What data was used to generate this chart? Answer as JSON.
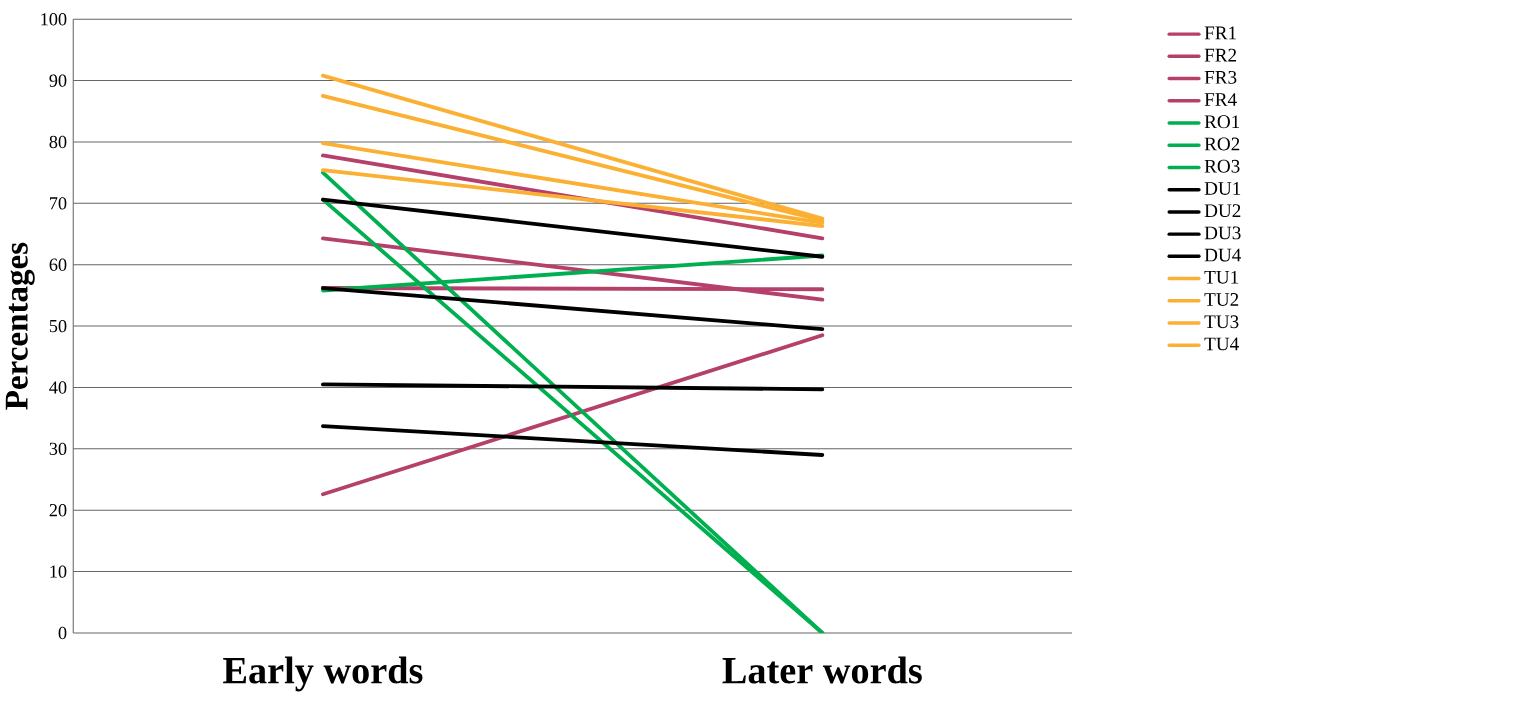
{
  "chart_data": {
    "type": "line",
    "categories": [
      "Early words",
      "Later words"
    ],
    "ylabel": "Percentages",
    "ylim": [
      0,
      100
    ],
    "yticks": [
      0,
      10,
      20,
      30,
      40,
      50,
      60,
      70,
      80,
      90,
      100
    ],
    "grid": "y",
    "legend": "right",
    "marker": "none",
    "line_style": "solid",
    "series": [
      {
        "name": "FR1",
        "color": "#b5406b",
        "values": [
          77.8,
          64.3
        ]
      },
      {
        "name": "FR2",
        "color": "#b5406b",
        "values": [
          64.3,
          54.3
        ]
      },
      {
        "name": "FR3",
        "color": "#b5406b",
        "values": [
          56.2,
          56.0
        ]
      },
      {
        "name": "FR4",
        "color": "#b5406b",
        "values": [
          22.6,
          48.5
        ]
      },
      {
        "name": "RO1",
        "color": "#00b050",
        "values": [
          75.0,
          0
        ]
      },
      {
        "name": "RO2",
        "color": "#00b050",
        "values": [
          55.8,
          61.5
        ]
      },
      {
        "name": "RO3",
        "color": "#00b050",
        "values": [
          70.6,
          0
        ]
      },
      {
        "name": "DU1",
        "color": "#000000",
        "values": [
          70.6,
          61.3
        ]
      },
      {
        "name": "DU2",
        "color": "#000000",
        "values": [
          33.7,
          29.0
        ]
      },
      {
        "name": "DU3",
        "color": "#000000",
        "values": [
          56.2,
          49.5
        ]
      },
      {
        "name": "DU4",
        "color": "#000000",
        "values": [
          40.5,
          39.7
        ]
      },
      {
        "name": "TU1",
        "color": "#fbb034",
        "values": [
          90.8,
          67.5
        ]
      },
      {
        "name": "TU2",
        "color": "#fbb034",
        "values": [
          87.5,
          67.2
        ]
      },
      {
        "name": "TU3",
        "color": "#fbb034",
        "values": [
          79.8,
          66.8
        ]
      },
      {
        "name": "TU4",
        "color": "#fbb034",
        "values": [
          75.4,
          66.3
        ]
      }
    ]
  }
}
